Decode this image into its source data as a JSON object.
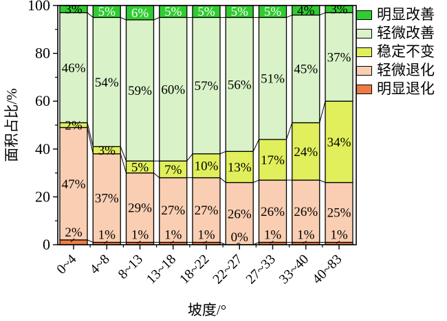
{
  "chart_data": {
    "type": "bar",
    "stacked": true,
    "orientation": "vertical",
    "xlabel": "坡度/°",
    "ylabel": "面积占比/%",
    "ylim": [
      0,
      100
    ],
    "y_major_ticks": [
      0,
      20,
      40,
      60,
      80,
      100
    ],
    "y_minor_ticks": [
      10,
      30,
      50,
      70,
      90
    ],
    "grid": false,
    "legend_position": "top-right",
    "categories": [
      "0~4",
      "4~8",
      "8~13",
      "13~18",
      "18~22",
      "22~27",
      "27~33",
      "33~40",
      "40~83"
    ],
    "series": [
      {
        "name": "明显退化",
        "color": "#ED7C44",
        "values": [
          2,
          1,
          1,
          1,
          1,
          0,
          1,
          1,
          1
        ],
        "label_placement": "above-with-leader",
        "label_color": "#000000"
      },
      {
        "name": "轻微退化",
        "color": "#F9CEB2",
        "values": [
          47,
          37,
          29,
          27,
          27,
          26,
          26,
          26,
          25
        ],
        "label_placement": "center",
        "label_color": "#000000"
      },
      {
        "name": "稳定不变",
        "color": "#E0EF5B",
        "values": [
          2,
          3,
          5,
          7,
          10,
          13,
          17,
          24,
          34
        ],
        "label_placement": "center",
        "label_color": "#000000"
      },
      {
        "name": "轻微改善",
        "color": "#D9F2C8",
        "values": [
          46,
          54,
          59,
          60,
          57,
          56,
          51,
          45,
          37
        ],
        "label_placement": "center",
        "label_color": "#000000"
      },
      {
        "name": "明显改善",
        "color": "#30CC31",
        "values": [
          3,
          5,
          6,
          5,
          5,
          5,
          5,
          4,
          3
        ],
        "label_placement": "center",
        "label_colors": [
          "#000000",
          "#ffffff",
          "#ffffff",
          "#ffffff",
          "#ffffff",
          "#ffffff",
          "#ffffff",
          "#000000",
          "#000000"
        ]
      }
    ],
    "legend_order_top_to_bottom": [
      "明显改善",
      "轻微改善",
      "稳定不变",
      "轻微退化",
      "明显退化"
    ],
    "segment_label_suffix": "%",
    "connectors_between_bars": true
  }
}
